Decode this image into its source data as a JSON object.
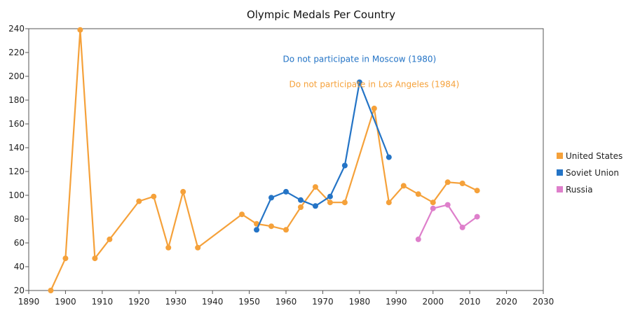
{
  "chart_data": {
    "type": "line",
    "title": "Olympic Medals Per Country",
    "xlabel": "",
    "ylabel": "",
    "xlim": [
      1890,
      2030
    ],
    "ylim": [
      20,
      240
    ],
    "x_ticks": [
      1890,
      1900,
      1910,
      1920,
      1930,
      1940,
      1950,
      1960,
      1970,
      1980,
      1990,
      2000,
      2010,
      2020,
      2030
    ],
    "y_ticks": [
      20,
      40,
      60,
      80,
      100,
      120,
      140,
      160,
      180,
      200,
      220,
      240
    ],
    "grid": false,
    "legend_position": "right",
    "series": [
      {
        "name": "United States",
        "color": "#F5A13A",
        "x": [
          1896,
          1900,
          1904,
          1908,
          1912,
          1920,
          1924,
          1928,
          1932,
          1936,
          1948,
          1952,
          1956,
          1960,
          1964,
          1968,
          1972,
          1976,
          1984,
          1988,
          1992,
          1996,
          2000,
          2004,
          2008,
          2012
        ],
        "y": [
          20,
          47,
          239,
          47,
          63,
          95,
          99,
          56,
          103,
          56,
          84,
          76,
          74,
          71,
          90,
          107,
          94,
          94,
          173,
          94,
          108,
          101,
          94,
          111,
          110,
          104
        ]
      },
      {
        "name": "Soviet Union",
        "color": "#2474C6",
        "x": [
          1952,
          1956,
          1960,
          1964,
          1968,
          1972,
          1976,
          1980,
          1988
        ],
        "y": [
          71,
          98,
          103,
          96,
          91,
          99,
          125,
          195,
          132
        ]
      },
      {
        "name": "Russia",
        "color": "#DE7FCB",
        "x": [
          1996,
          2000,
          2004,
          2008,
          2012
        ],
        "y": [
          63,
          89,
          92,
          73,
          82
        ]
      }
    ],
    "annotations": [
      {
        "text": "Do not participate in Moscow (1980)",
        "color": "#2474C6",
        "anchor_x": 1980,
        "anchor_y": 212
      },
      {
        "text": "Do not participate in Los Angeles (1984)",
        "color": "#F5A13A",
        "anchor_x": 1984,
        "anchor_y": 191
      }
    ]
  }
}
